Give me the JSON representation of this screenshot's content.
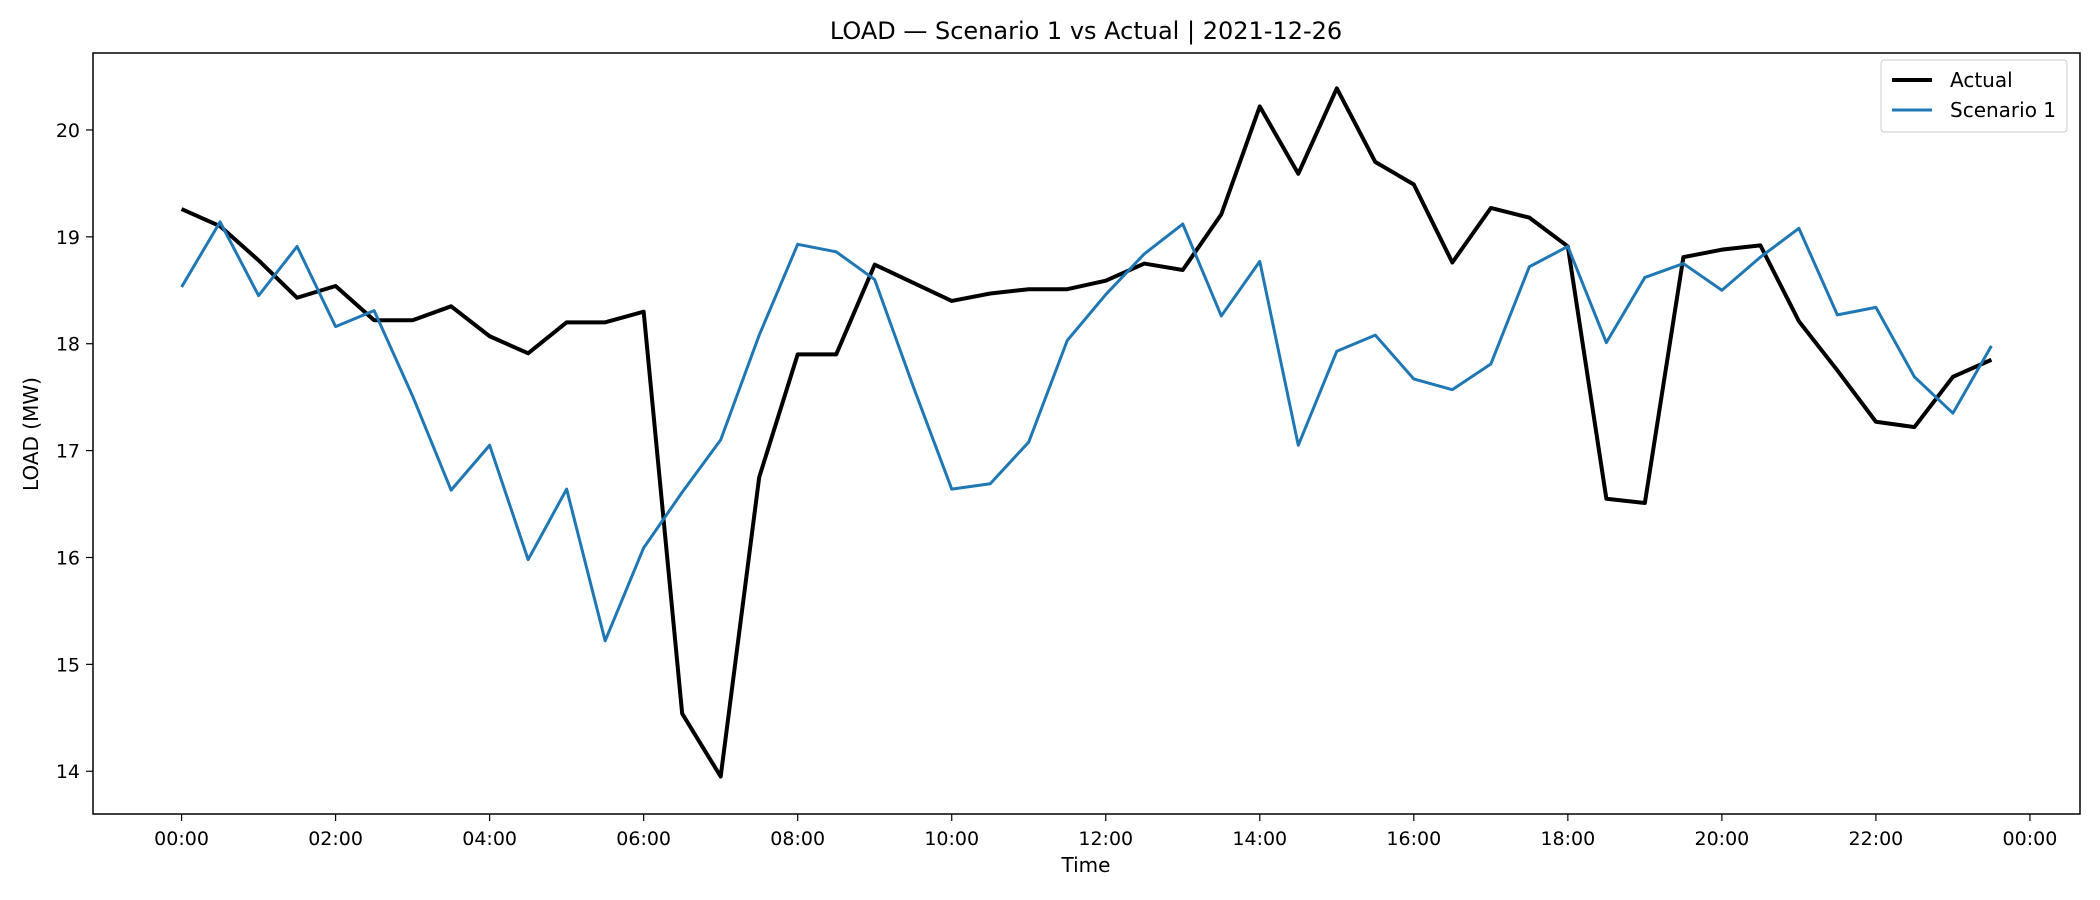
{
  "chart_data": {
    "type": "line",
    "title": "LOAD — Scenario 1 vs Actual | 2021-12-26",
    "xlabel": "Time",
    "ylabel": "LOAD (MW)",
    "x_ticks": [
      "00:00",
      "02:00",
      "04:00",
      "06:00",
      "08:00",
      "10:00",
      "12:00",
      "14:00",
      "16:00",
      "18:00",
      "20:00",
      "22:00",
      "00:00"
    ],
    "y_ticks": [
      14,
      15,
      16,
      17,
      18,
      19,
      20
    ],
    "x_range_hours": [
      -1.15,
      24.65
    ],
    "ylim": [
      13.6,
      20.72
    ],
    "grid": false,
    "legend_position": "top-right",
    "x_hours": [
      0,
      0.5,
      1,
      1.5,
      2,
      2.5,
      3,
      3.5,
      4,
      4.5,
      5,
      5.5,
      6,
      6.5,
      7,
      7.5,
      8,
      8.5,
      9,
      9.5,
      10,
      10.5,
      11,
      11.5,
      12,
      12.5,
      13,
      13.5,
      14,
      14.5,
      15,
      15.5,
      16,
      16.5,
      17,
      17.5,
      18,
      18.5,
      19,
      19.5,
      20,
      20.5,
      21,
      21.5,
      22,
      22.5,
      23,
      23.5
    ],
    "series": [
      {
        "name": "Actual",
        "color": "#000000",
        "values": [
          19.26,
          19.1,
          18.78,
          18.43,
          18.54,
          18.22,
          18.22,
          18.35,
          18.07,
          17.91,
          18.2,
          18.2,
          18.3,
          14.54,
          13.95,
          16.75,
          17.9,
          17.9,
          18.74,
          18.57,
          18.4,
          18.47,
          18.51,
          18.51,
          18.59,
          18.75,
          18.69,
          19.21,
          20.22,
          19.59,
          20.39,
          19.7,
          19.49,
          18.76,
          19.27,
          19.18,
          18.91,
          16.55,
          16.51,
          18.81,
          18.88,
          18.92,
          18.21,
          17.75,
          17.27,
          17.22,
          17.69,
          17.85
        ]
      },
      {
        "name": "Scenario 1",
        "color": "#1f77b4",
        "values": [
          18.53,
          19.14,
          18.45,
          18.91,
          18.16,
          18.31,
          17.51,
          16.63,
          17.05,
          15.98,
          16.64,
          15.22,
          16.09,
          16.61,
          17.1,
          18.08,
          18.93,
          18.86,
          18.6,
          17.6,
          16.64,
          16.69,
          17.08,
          18.03,
          18.46,
          18.84,
          19.12,
          18.26,
          18.77,
          17.05,
          17.93,
          18.08,
          17.67,
          17.57,
          17.81,
          18.72,
          18.91,
          18.01,
          18.62,
          18.75,
          18.5,
          18.81,
          19.08,
          18.27,
          18.34,
          17.69,
          17.35,
          17.98
        ]
      }
    ]
  }
}
